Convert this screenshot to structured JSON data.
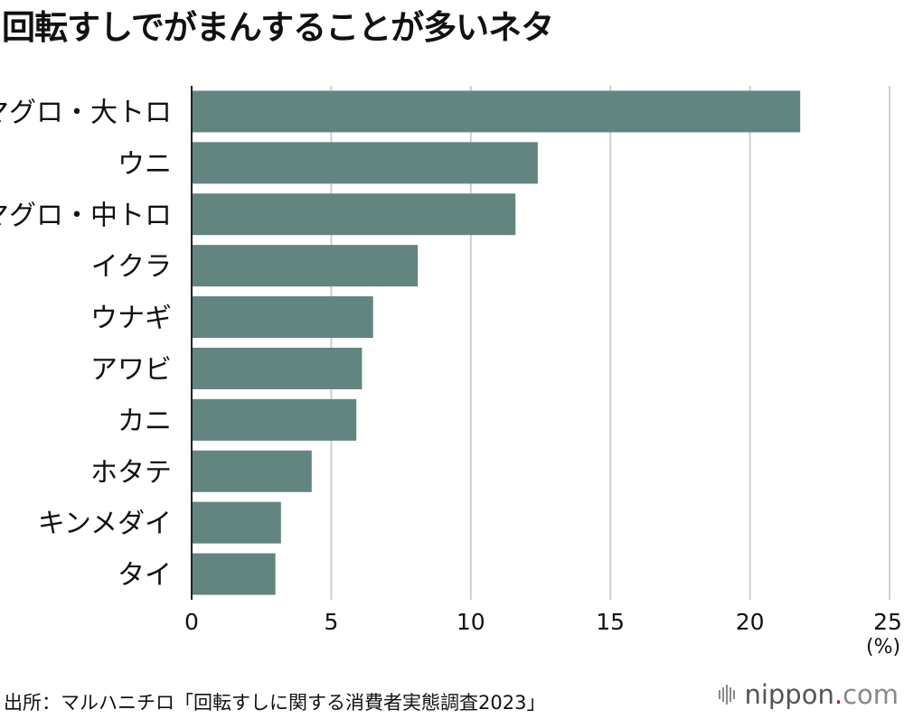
{
  "title": "回転すしでがまんすることが多いネタ",
  "unit_label": "(%)",
  "source": "出所：マルハニチロ「回転すしに関する消費者実態調査2023」",
  "logo": {
    "name": "nippon",
    "dot": ".",
    "tld": "com"
  },
  "colors": {
    "bar": "#628580",
    "grid": "#cfcfcf",
    "axis": "#222222"
  },
  "chart_data": {
    "type": "bar",
    "orientation": "horizontal",
    "title": "回転すしでがまんすることが多いネタ",
    "categories": [
      "マグロ・大トロ",
      "ウニ",
      "マグロ・中トロ",
      "イクラ",
      "ウナギ",
      "アワビ",
      "カニ",
      "ホタテ",
      "キンメダイ",
      "タイ"
    ],
    "values": [
      21.8,
      12.4,
      11.6,
      8.1,
      6.5,
      6.1,
      5.9,
      4.3,
      3.2,
      3.0
    ],
    "xlabel": "(%)",
    "ylabel": "",
    "xlim": [
      0,
      25
    ],
    "ticks": [
      0,
      5,
      10,
      15,
      20,
      25
    ],
    "grid": true
  }
}
